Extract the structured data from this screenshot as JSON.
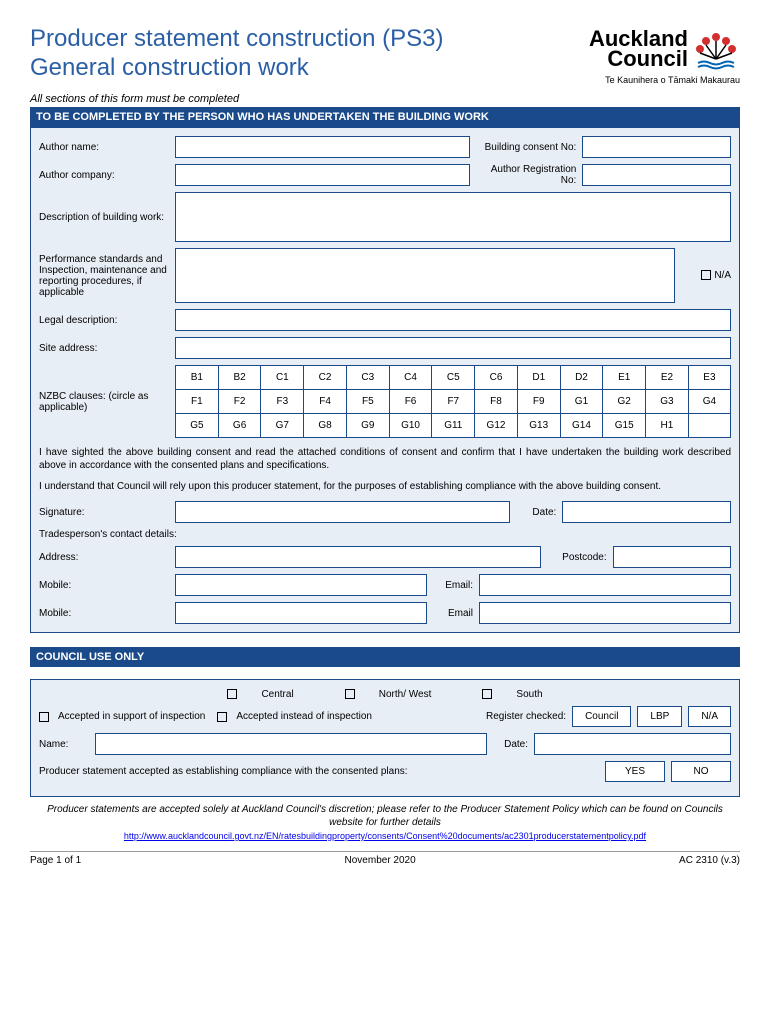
{
  "header": {
    "title_line1": "Producer statement construction (PS3)",
    "title_line2": "General construction work",
    "logo_top": "Auckland",
    "logo_bottom": "Council",
    "logo_tagline": "Te Kaunihera o Tāmaki Makaurau"
  },
  "instruction": "All sections of this form must be completed",
  "section1_header": "TO BE COMPLETED BY THE PERSON WHO HAS UNDERTAKEN THE BUILDING WORK",
  "labels": {
    "author_name": "Author name:",
    "building_consent": "Building consent No:",
    "author_company": "Author company:",
    "author_reg": "Author Registration No:",
    "description": "Description of building work:",
    "performance": "Performance standards and Inspection, maintenance and reporting procedures, if applicable",
    "na": "N/A",
    "legal": "Legal description:",
    "site": "Site address:",
    "nzbc": "NZBC clauses: (circle as applicable)",
    "signature": "Signature:",
    "date": "Date:",
    "trades": "Tradesperson's contact details:",
    "address": "Address:",
    "postcode": "Postcode:",
    "mobile": "Mobile:",
    "email": "Email:",
    "email2": "Email"
  },
  "nzbc_row1": [
    "B1",
    "B2",
    "C1",
    "C2",
    "C3",
    "C4",
    "C5",
    "C6",
    "D1",
    "D2",
    "E1",
    "E2",
    "E3"
  ],
  "nzbc_row2": [
    "F1",
    "F2",
    "F3",
    "F4",
    "F5",
    "F6",
    "F7",
    "F8",
    "F9",
    "G1",
    "G2",
    "G3",
    "G4"
  ],
  "nzbc_row3": [
    "G5",
    "G6",
    "G7",
    "G8",
    "G9",
    "G10",
    "G11",
    "G12",
    "G13",
    "G14",
    "G15",
    "H1",
    ""
  ],
  "para1": "I have sighted the above building consent and read the attached conditions of consent and confirm that I have undertaken the building work described above in accordance with the consented plans and specifications.",
  "para2": "I understand that Council will rely upon this producer statement, for the purposes of establishing compliance with the above building consent.",
  "section2_header": "COUNCIL USE ONLY",
  "council": {
    "regions": [
      "Central",
      "North/ West",
      "South"
    ],
    "accepted_support": "Accepted in support of inspection",
    "accepted_instead": "Accepted instead of inspection",
    "register": "Register checked:",
    "reg_opts": [
      "Council",
      "LBP",
      "N/A"
    ],
    "name": "Name:",
    "date": "Date:",
    "producer": "Producer statement accepted as establishing compliance with the consented plans:",
    "yes": "YES",
    "no": "NO"
  },
  "footer_note": "Producer statements are accepted solely at Auckland Council's discretion; please refer to the Producer Statement Policy which can be found on Councils website for further details",
  "footer_link": "http://www.aucklandcouncil.govt.nz/EN/ratesbuildingproperty/consents/Consent%20documents/ac2301producerstatementpolicy.pdf",
  "page_footer": {
    "left": "Page 1 of 1",
    "center": "November 2020",
    "right": "AC 2310 (v.3)"
  },
  "colors": {
    "primary": "#1a4a8a",
    "title": "#2b5fa5",
    "section_bg": "#e8eef5"
  }
}
